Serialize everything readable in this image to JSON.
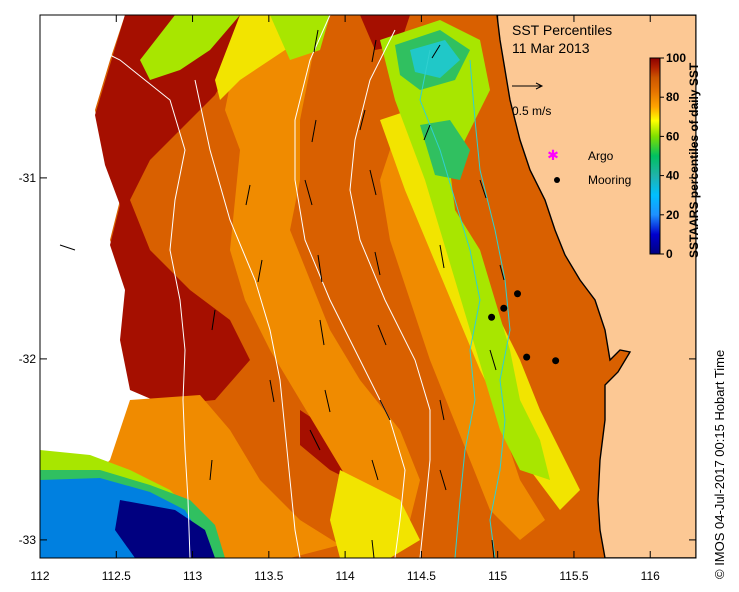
{
  "title": {
    "line1": "SST Percentiles",
    "line2": "11 Mar 2013"
  },
  "vector_legend": {
    "label": "0.5 m/s"
  },
  "legend": {
    "argo_label": "Argo",
    "mooring_label": "Mooring",
    "argo_color": "#ff00ff",
    "mooring_color": "#000000"
  },
  "colorbar": {
    "label": "SSTAARS percentiles of daily SST",
    "ticks": [
      "0",
      "20",
      "40",
      "60",
      "80",
      "100"
    ],
    "colors": [
      "#000080",
      "#0000cd",
      "#1e90ff",
      "#00bfff",
      "#20b2aa",
      "#00c060",
      "#7fdf00",
      "#ffff00",
      "#ffa500",
      "#e57300",
      "#cc5500",
      "#b22200",
      "#8b0000"
    ]
  },
  "axes": {
    "x_ticks": [
      "112",
      "112.5",
      "113",
      "113.5",
      "114",
      "114.5",
      "115",
      "115.5",
      "116"
    ],
    "y_ticks": [
      "-31",
      "-32",
      "-33"
    ],
    "x_range": [
      112,
      116.3
    ],
    "y_range": [
      -30.1,
      -33.1
    ]
  },
  "credit": "©  IMOS 04-Jul-2017 00:15 Hobart Time",
  "moorings": [
    {
      "lon": 115.13,
      "lat": -31.64
    },
    {
      "lon": 114.96,
      "lat": -31.77
    },
    {
      "lon": 115.04,
      "lat": -31.72
    },
    {
      "lon": 115.19,
      "lat": -31.99
    },
    {
      "lon": 115.38,
      "lat": -32.01
    }
  ],
  "colors": {
    "land": "#fcc894",
    "deep_red": "#a50f00",
    "dark_orange": "#d96000",
    "orange": "#f08b00",
    "yellow": "#f2e400",
    "lime": "#a8e600",
    "green": "#30c060",
    "cyan": "#20c8c8",
    "blue": "#0080e0",
    "navy": "#000080"
  }
}
